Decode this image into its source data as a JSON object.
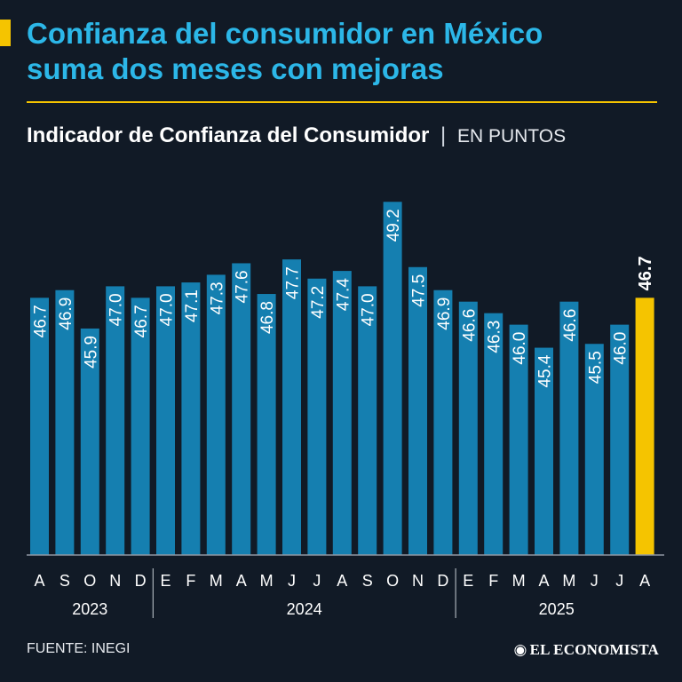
{
  "headline": {
    "line1": "Confianza del consumidor en México",
    "line2": "suma dos meses con mejoras"
  },
  "subtitle": {
    "main": "Indicador de Confianza del Consumidor",
    "separator": "|",
    "unit": "EN PUNTOS"
  },
  "footer": {
    "source": "FUENTE: INEGI",
    "brand_icon": "◉",
    "brand": "EL ECONOMISTA"
  },
  "colors": {
    "bar": "#157fb0",
    "highlight": "#f5c400",
    "headline": "#2cb7e8",
    "background": "#111a26"
  },
  "chart_data": {
    "type": "bar",
    "title": "Indicador de Confianza del Consumidor",
    "ylabel": "EN PUNTOS",
    "xlabel": "",
    "ylim": [
      40,
      49.6
    ],
    "grid": false,
    "categories": [
      "A",
      "S",
      "O",
      "N",
      "D",
      "E",
      "F",
      "M",
      "A",
      "M",
      "J",
      "J",
      "A",
      "S",
      "O",
      "N",
      "D",
      "E",
      "F",
      "M",
      "A",
      "M",
      "J",
      "J",
      "A"
    ],
    "values": [
      46.7,
      46.9,
      45.9,
      47.0,
      46.7,
      47.0,
      47.1,
      47.3,
      47.6,
      46.8,
      47.7,
      47.2,
      47.4,
      47.0,
      49.2,
      47.5,
      46.9,
      46.6,
      46.3,
      46.0,
      45.4,
      46.6,
      45.5,
      46.0,
      46.7
    ],
    "value_labels": [
      "46.7",
      "46.9",
      "45.9",
      "47.0",
      "46.7",
      "47.0",
      "47.1",
      "47.3",
      "47.6",
      "46.8",
      "47.7",
      "47.2",
      "47.4",
      "47.0",
      "49.2",
      "47.5",
      "46.9",
      "46.6",
      "46.3",
      "46.0",
      "45.4",
      "46.6",
      "45.5",
      "46.0",
      "46.7"
    ],
    "highlight_index": 24,
    "years": [
      {
        "label": "2023",
        "start": 0,
        "end": 4
      },
      {
        "label": "2024",
        "start": 5,
        "end": 16
      },
      {
        "label": "2025",
        "start": 17,
        "end": 24
      }
    ]
  }
}
